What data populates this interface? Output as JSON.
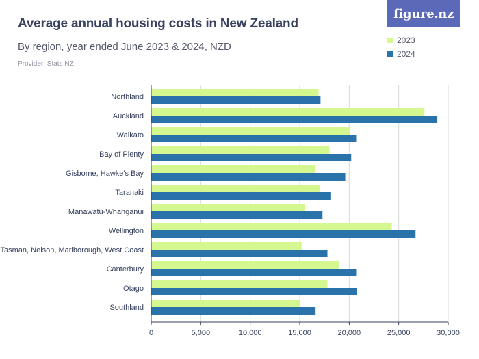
{
  "header": {
    "title": "Average annual housing costs in New Zealand",
    "subtitle": "By region, year ended June 2023 & 2024, NZD",
    "provider": "Provider: Stats NZ"
  },
  "logo": {
    "text": "figure.nz"
  },
  "colors": {
    "series_2023": "#d4f78f",
    "series_2024": "#2a72aa",
    "grid": "#d9d9d9",
    "axis": "#38425e",
    "logo_bg": "#5b6ab8"
  },
  "chart_data": {
    "type": "bar",
    "orientation": "horizontal",
    "categories": [
      "Northland",
      "Auckland",
      "Waikato",
      "Bay of Plenty",
      "Gisborne, Hawke's Bay",
      "Taranaki",
      "Manawatū-Whanganui",
      "Wellington",
      "Tasman, Nelson, Marlborough, West Coast",
      "Canterbury",
      "Otago",
      "Southland"
    ],
    "series": [
      {
        "name": "2023",
        "values": [
          16900,
          27600,
          20000,
          18000,
          16600,
          17000,
          15500,
          24300,
          15200,
          19000,
          17800,
          15000
        ]
      },
      {
        "name": "2024",
        "values": [
          17100,
          28900,
          20700,
          20200,
          19600,
          18100,
          17300,
          26700,
          17800,
          20700,
          20800,
          16600
        ]
      }
    ],
    "xlim": [
      0,
      30000
    ],
    "xticks": [
      0,
      5000,
      10000,
      15000,
      20000,
      25000,
      30000
    ],
    "xtick_labels": [
      "0",
      "5,000",
      "10,000",
      "15,000",
      "20,000",
      "25,000",
      "30,000"
    ],
    "grid": true,
    "legend": "top-right"
  }
}
